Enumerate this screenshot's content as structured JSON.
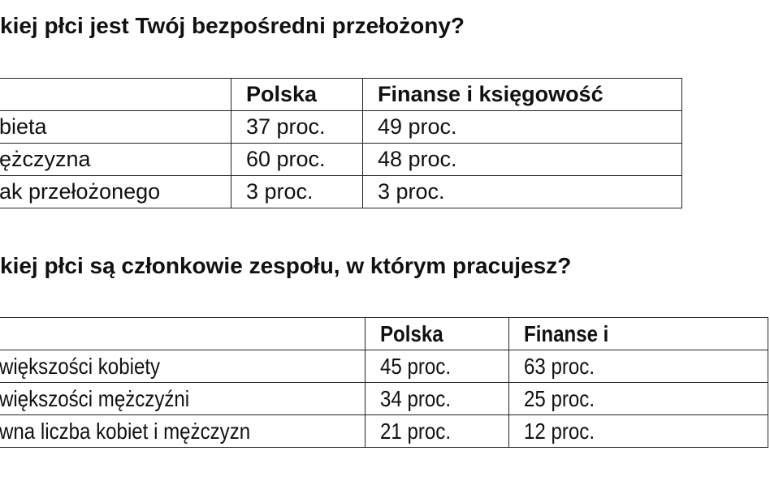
{
  "section1": {
    "title": "kiej płci jest Twój bezpośredni przełożony?",
    "headers": [
      "",
      "Polska",
      "Finanse i księgowość"
    ],
    "rows": [
      [
        "bieta",
        "37 proc.",
        "49 proc."
      ],
      [
        "ężczyzna",
        "60 proc.",
        "48 proc."
      ],
      [
        "ak przełożonego",
        "3 proc.",
        "3 proc."
      ]
    ]
  },
  "section2": {
    "title": "kiej płci są członkowie zespołu, w którym pracujesz?",
    "headers": [
      "",
      "Polska",
      "Finanse i"
    ],
    "rows": [
      [
        "większości kobiety",
        "45 proc.",
        "63 proc."
      ],
      [
        "większości mężczyźni",
        "34 proc.",
        "25 proc."
      ],
      [
        "wna liczba kobiet i mężczyzn",
        "21 proc.",
        "12 proc."
      ]
    ]
  }
}
